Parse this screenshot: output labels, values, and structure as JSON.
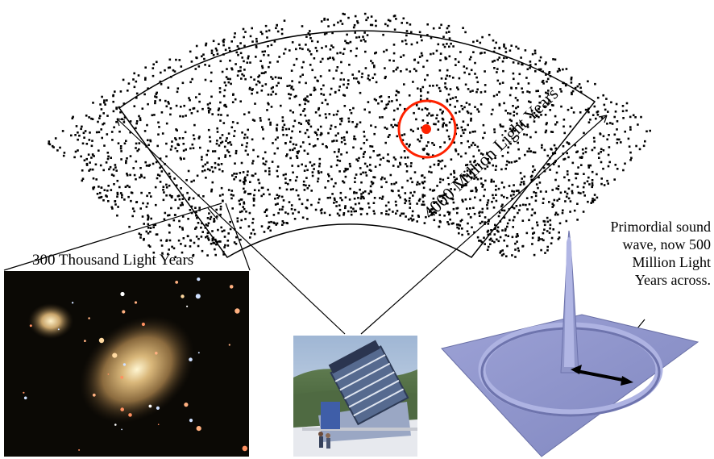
{
  "labels": {
    "galaxy_scale": "300 Thousand Light Years",
    "survey_depth": "4000 Million Light Years",
    "sound_wave_lines": [
      "Primordial sound",
      "wave, now 500",
      "Million Light",
      "Years across."
    ]
  },
  "colors": {
    "galaxy_dots": "#000000",
    "highlight_circle": "#ff2200",
    "sound_wave_surface": "#8f95c9",
    "galaxy_photo_background": "#0b0905",
    "telescope_sky": "#b9cbe0"
  },
  "icons": {
    "wedge": "galaxy-redshift-wedge",
    "galaxy_photo": "elliptical-galaxy-photo",
    "telescope_photo": "sloan-telescope-photo",
    "wave_surface": "primordial-sound-wave-surface"
  }
}
